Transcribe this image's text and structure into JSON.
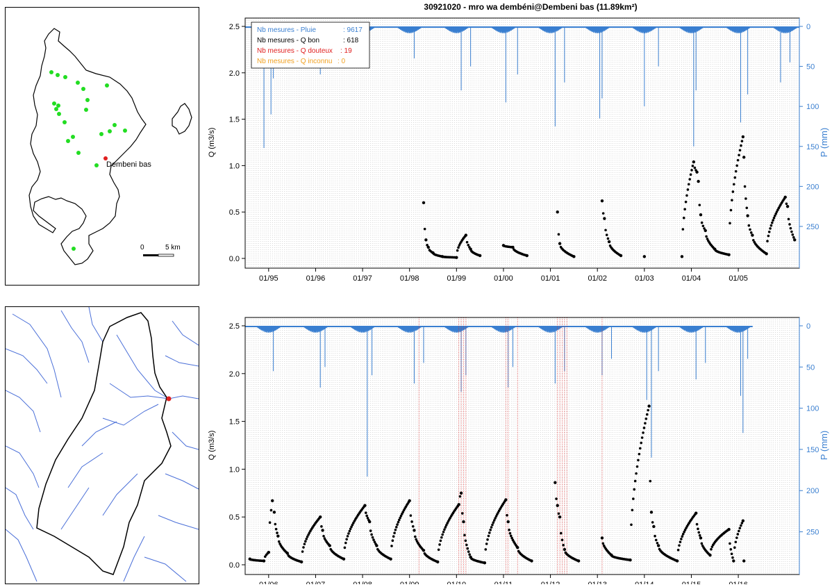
{
  "title": "30921020 - mro wa dembéni@Dembeni bas (11.89km²)",
  "map_top": {
    "station_label": "Dembeni bas",
    "scale_labels": [
      "0",
      "5 km"
    ]
  },
  "colors": {
    "rain": "#3a7fd0",
    "q_good": "#000000",
    "q_doubtful": "#e02020",
    "q_unknown": "#f0a020",
    "rain_gauge": "#22dd22",
    "station": "#e02020",
    "river": "#4a6fd8",
    "grid": "#b0b0b0"
  },
  "legend": {
    "lines": [
      {
        "label": "Nb mesures - Pluie",
        "value": ": 9617",
        "color": "#3a7fd0"
      },
      {
        "label": "Nb mesures - Q bon",
        "value": ": 618",
        "color": "#000000"
      },
      {
        "label": "Nb mesures - Q douteux",
        "value": ": 19",
        "color": "#e02020"
      },
      {
        "label": "Nb mesures - Q inconnu",
        "value": ": 0",
        "color": "#f0a020"
      }
    ]
  },
  "chart_data": [
    {
      "type": "scatter",
      "ylabel": "Q (m3/s)",
      "y2label": "P (mm)",
      "ylim": [
        0,
        2.5
      ],
      "y2lim_reversed": [
        0,
        290
      ],
      "yticks": [
        "0.0",
        "0.5",
        "1.0",
        "1.5",
        "2.0",
        "2.5"
      ],
      "y2ticks": [
        "0",
        "50",
        "100",
        "150",
        "200",
        "250"
      ],
      "xtick_labels": [
        "01/95",
        "01/96",
        "01/97",
        "01/98",
        "01/99",
        "01/00",
        "01/01",
        "01/02",
        "01/03",
        "01/04",
        "01/05"
      ],
      "x_range_years": [
        1994.5,
        2006.3
      ],
      "rain_spikes": [
        {
          "x": 1994.9,
          "mm": 152
        },
        {
          "x": 1995.05,
          "mm": 110
        },
        {
          "x": 1995.1,
          "mm": 65
        },
        {
          "x": 1996.1,
          "mm": 60
        },
        {
          "x": 1996.2,
          "mm": 45
        },
        {
          "x": 1997.1,
          "mm": 30
        },
        {
          "x": 1998.1,
          "mm": 40
        },
        {
          "x": 1999.1,
          "mm": 80
        },
        {
          "x": 1999.3,
          "mm": 50
        },
        {
          "x": 2000.05,
          "mm": 95
        },
        {
          "x": 2000.3,
          "mm": 60
        },
        {
          "x": 2001.1,
          "mm": 125
        },
        {
          "x": 2001.3,
          "mm": 70
        },
        {
          "x": 2002.05,
          "mm": 115
        },
        {
          "x": 2002.1,
          "mm": 90
        },
        {
          "x": 2003.0,
          "mm": 100
        },
        {
          "x": 2003.3,
          "mm": 50
        },
        {
          "x": 2004.05,
          "mm": 150
        },
        {
          "x": 2004.1,
          "mm": 80
        },
        {
          "x": 2005.05,
          "mm": 120
        },
        {
          "x": 2005.2,
          "mm": 85
        },
        {
          "x": 2005.9,
          "mm": 70
        },
        {
          "x": 2006.1,
          "mm": 45
        }
      ],
      "q_good": [
        {
          "x": 1998.3,
          "y": 0.6
        },
        {
          "x": 1998.35,
          "y": 0.2
        },
        {
          "x": 1998.4,
          "y": 0.12
        },
        {
          "x": 1998.5,
          "y": 0.06
        },
        {
          "x": 1998.7,
          "y": 0.02
        },
        {
          "x": 1999.0,
          "y": 0.01
        },
        {
          "x": 1999.2,
          "y": 0.25
        },
        {
          "x": 1999.3,
          "y": 0.1
        },
        {
          "x": 1999.5,
          "y": 0.03
        },
        {
          "x": 2000.0,
          "y": 0.14
        },
        {
          "x": 2000.2,
          "y": 0.12
        },
        {
          "x": 2000.5,
          "y": 0.03
        },
        {
          "x": 2001.15,
          "y": 0.5
        },
        {
          "x": 2001.2,
          "y": 0.16
        },
        {
          "x": 2001.5,
          "y": 0.02
        },
        {
          "x": 2002.1,
          "y": 0.62
        },
        {
          "x": 2002.15,
          "y": 0.43
        },
        {
          "x": 2002.25,
          "y": 0.18
        },
        {
          "x": 2002.5,
          "y": 0.03
        },
        {
          "x": 2003.0,
          "y": 0.02
        },
        {
          "x": 2003.8,
          "y": 0.02
        },
        {
          "x": 2004.05,
          "y": 1.04
        },
        {
          "x": 2004.12,
          "y": 0.93
        },
        {
          "x": 2004.15,
          "y": 0.83
        },
        {
          "x": 2004.2,
          "y": 0.47
        },
        {
          "x": 2004.3,
          "y": 0.3
        },
        {
          "x": 2004.5,
          "y": 0.1
        },
        {
          "x": 2004.8,
          "y": 0.04
        },
        {
          "x": 2005.1,
          "y": 1.31
        },
        {
          "x": 2005.12,
          "y": 1.09
        },
        {
          "x": 2005.2,
          "y": 0.46
        },
        {
          "x": 2005.3,
          "y": 0.25
        },
        {
          "x": 2005.6,
          "y": 0.05
        },
        {
          "x": 2006.0,
          "y": 0.66
        },
        {
          "x": 2006.05,
          "y": 0.56
        },
        {
          "x": 2006.2,
          "y": 0.2
        }
      ],
      "q_doubtful": []
    },
    {
      "type": "scatter",
      "ylabel": "Q (m3/s)",
      "y2label": "P (mm)",
      "ylim": [
        0,
        2.5
      ],
      "y2lim_reversed": [
        0,
        290
      ],
      "yticks": [
        "0.0",
        "0.5",
        "1.0",
        "1.5",
        "2.0",
        "2.5"
      ],
      "y2ticks": [
        "0",
        "50",
        "100",
        "150",
        "200",
        "250"
      ],
      "xtick_labels": [
        "01/06",
        "01/07",
        "01/08",
        "01/09",
        "01/10",
        "01/11",
        "01/12",
        "01/13",
        "01/14",
        "01/15",
        "01/16"
      ],
      "x_range_years": [
        2005.5,
        2017.3
      ],
      "rain_spikes": [
        {
          "x": 2006.1,
          "mm": 55
        },
        {
          "x": 2007.1,
          "mm": 75
        },
        {
          "x": 2007.2,
          "mm": 50
        },
        {
          "x": 2008.1,
          "mm": 183
        },
        {
          "x": 2008.2,
          "mm": 60
        },
        {
          "x": 2009.1,
          "mm": 70
        },
        {
          "x": 2009.3,
          "mm": 45
        },
        {
          "x": 2010.1,
          "mm": 80
        },
        {
          "x": 2010.2,
          "mm": 60
        },
        {
          "x": 2011.1,
          "mm": 75
        },
        {
          "x": 2011.2,
          "mm": 50
        },
        {
          "x": 2012.1,
          "mm": 70
        },
        {
          "x": 2012.3,
          "mm": 55
        },
        {
          "x": 2013.1,
          "mm": 60
        },
        {
          "x": 2013.3,
          "mm": 40
        },
        {
          "x": 2014.05,
          "mm": 90
        },
        {
          "x": 2014.15,
          "mm": 160
        },
        {
          "x": 2014.3,
          "mm": 55
        },
        {
          "x": 2015.1,
          "mm": 65
        },
        {
          "x": 2015.3,
          "mm": 45
        },
        {
          "x": 2016.1,
          "mm": 130
        },
        {
          "x": 2016.05,
          "mm": 85
        },
        {
          "x": 2016.2,
          "mm": 40
        }
      ],
      "q_good": [
        {
          "x": 2005.6,
          "y": 0.06
        },
        {
          "x": 2005.9,
          "y": 0.04
        },
        {
          "x": 2006.0,
          "y": 0.13
        },
        {
          "x": 2006.08,
          "y": 0.67
        },
        {
          "x": 2006.12,
          "y": 0.55
        },
        {
          "x": 2006.2,
          "y": 0.3
        },
        {
          "x": 2006.4,
          "y": 0.12
        },
        {
          "x": 2006.7,
          "y": 0.03
        },
        {
          "x": 2007.1,
          "y": 0.5
        },
        {
          "x": 2007.15,
          "y": 0.36
        },
        {
          "x": 2007.3,
          "y": 0.2
        },
        {
          "x": 2007.6,
          "y": 0.06
        },
        {
          "x": 2008.05,
          "y": 0.62
        },
        {
          "x": 2008.15,
          "y": 0.45
        },
        {
          "x": 2008.3,
          "y": 0.2
        },
        {
          "x": 2008.6,
          "y": 0.06
        },
        {
          "x": 2009.0,
          "y": 0.67
        },
        {
          "x": 2009.1,
          "y": 0.36
        },
        {
          "x": 2009.3,
          "y": 0.15
        },
        {
          "x": 2009.6,
          "y": 0.03
        },
        {
          "x": 2010.05,
          "y": 0.63
        },
        {
          "x": 2010.1,
          "y": 0.75
        },
        {
          "x": 2010.15,
          "y": 0.45
        },
        {
          "x": 2010.3,
          "y": 0.08
        },
        {
          "x": 2010.6,
          "y": 0.02
        },
        {
          "x": 2011.05,
          "y": 0.68
        },
        {
          "x": 2011.1,
          "y": 0.45
        },
        {
          "x": 2011.3,
          "y": 0.18
        },
        {
          "x": 2011.6,
          "y": 0.04
        },
        {
          "x": 2012.1,
          "y": 0.86
        },
        {
          "x": 2012.15,
          "y": 0.62
        },
        {
          "x": 2012.2,
          "y": 0.5
        },
        {
          "x": 2012.3,
          "y": 0.16
        },
        {
          "x": 2012.6,
          "y": 0.04
        },
        {
          "x": 2013.1,
          "y": 0.28
        },
        {
          "x": 2013.3,
          "y": 0.1
        },
        {
          "x": 2013.7,
          "y": 0.05
        },
        {
          "x": 2014.1,
          "y": 1.66
        },
        {
          "x": 2014.15,
          "y": 0.55
        },
        {
          "x": 2014.2,
          "y": 0.4
        },
        {
          "x": 2014.3,
          "y": 0.2
        },
        {
          "x": 2014.7,
          "y": 0.04
        },
        {
          "x": 2015.1,
          "y": 0.54
        },
        {
          "x": 2015.2,
          "y": 0.28
        },
        {
          "x": 2015.4,
          "y": 0.1
        },
        {
          "x": 2015.8,
          "y": 0.37
        },
        {
          "x": 2015.9,
          "y": 0.04
        },
        {
          "x": 2016.1,
          "y": 0.46
        },
        {
          "x": 2016.12,
          "y": 0.04
        }
      ],
      "q_doubtful": [
        2009.2,
        2010.05,
        2010.1,
        2010.15,
        2010.2,
        2011.05,
        2011.1,
        2011.3,
        2012.15,
        2012.2,
        2012.25,
        2012.3,
        2012.35,
        2013.1
      ]
    }
  ]
}
